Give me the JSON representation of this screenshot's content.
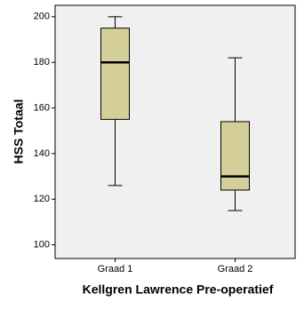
{
  "chart_data": {
    "type": "box",
    "y_label": "HSS Totaal",
    "x_label": "Kellgren Lawrence Pre-operatief",
    "categories": [
      "Graad 1",
      "Graad 2"
    ],
    "min": [
      126,
      115
    ],
    "q1": [
      155,
      124
    ],
    "median": [
      180,
      130
    ],
    "q3": [
      195,
      154
    ],
    "max": [
      200,
      182
    ],
    "color": "#d4cf98",
    "ylim": [
      94,
      205
    ],
    "yticks": [
      100,
      120,
      140,
      160,
      180,
      200
    ]
  }
}
